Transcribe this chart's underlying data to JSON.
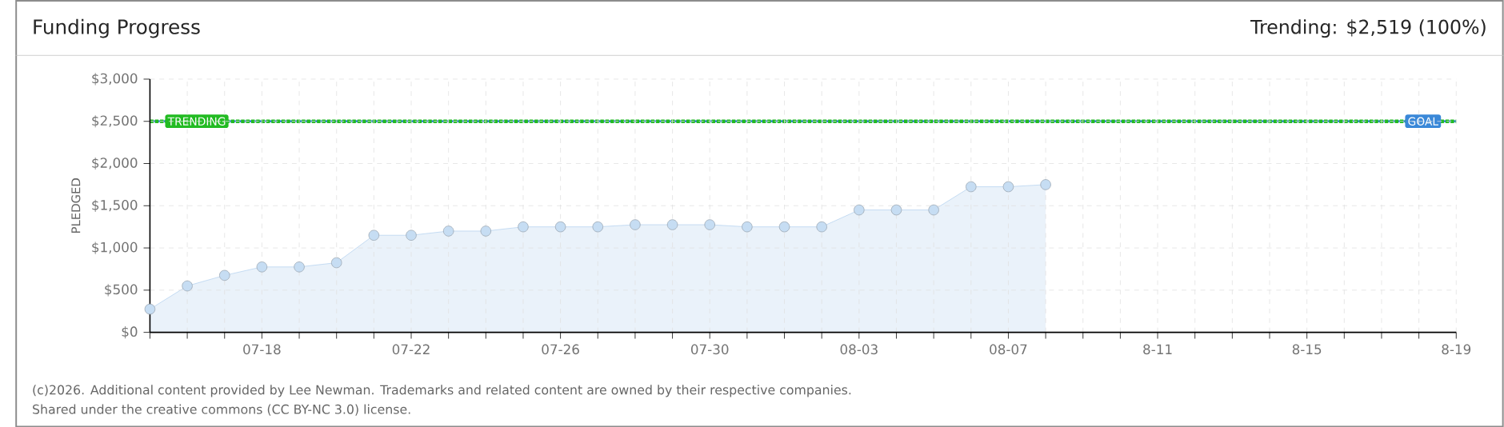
{
  "chart_data": {
    "type": "area",
    "title": "Funding Progress",
    "subtitle": "Trending: $2,519 (100%)",
    "ylabel": "PLEDGED",
    "categories": [
      null,
      null,
      null,
      "07-18",
      null,
      null,
      null,
      "07-22",
      null,
      null,
      null,
      "07-26",
      null,
      null,
      null,
      "07-30",
      null,
      null,
      null,
      "08-03",
      null,
      null,
      null,
      "08-07",
      null,
      null,
      null,
      "8-11",
      null,
      null,
      null,
      "8-15",
      null,
      null,
      null,
      "8-19"
    ],
    "series": [
      {
        "color": "#b8d4f0",
        "values": [
          275,
          550,
          675,
          775,
          775,
          825,
          1150,
          1150,
          1200,
          1200,
          1250,
          1250,
          1250,
          1275,
          1275,
          1275,
          1250,
          1250,
          1250,
          1450,
          1450,
          1450,
          1725,
          1725,
          1750,
          null,
          null,
          null,
          null,
          null,
          null,
          null,
          null,
          null,
          null,
          null
        ]
      }
    ],
    "ylim": [
      0,
      3000
    ],
    "yticks": [
      {
        "value": 0,
        "label": "$0"
      },
      {
        "value": 500,
        "label": "$500"
      },
      {
        "value": 1000,
        "label": "$1,000"
      },
      {
        "value": 1500,
        "label": "$1,500"
      },
      {
        "value": 2000,
        "label": "$2,000"
      },
      {
        "value": 2500,
        "label": "$2,500"
      },
      {
        "value": 3000,
        "label": "$3,000"
      }
    ],
    "ref_lines": [
      {
        "axis": "y",
        "value": 2500,
        "label": "GOAL",
        "color": "#3a88d8",
        "line_style": "solid"
      },
      {
        "axis": "y",
        "value": 2500,
        "label": "TRENDING",
        "color": "#22bb22",
        "line_style": "dotted"
      }
    ],
    "grid": true,
    "marker": "circle",
    "annotations": [
      "(c)2026. Additional content provided by Lee Newman. Trademarks and related content are owned by their respective companies.",
      "Shared under the creative commons (CC BY-NC 3.0) license."
    ]
  }
}
